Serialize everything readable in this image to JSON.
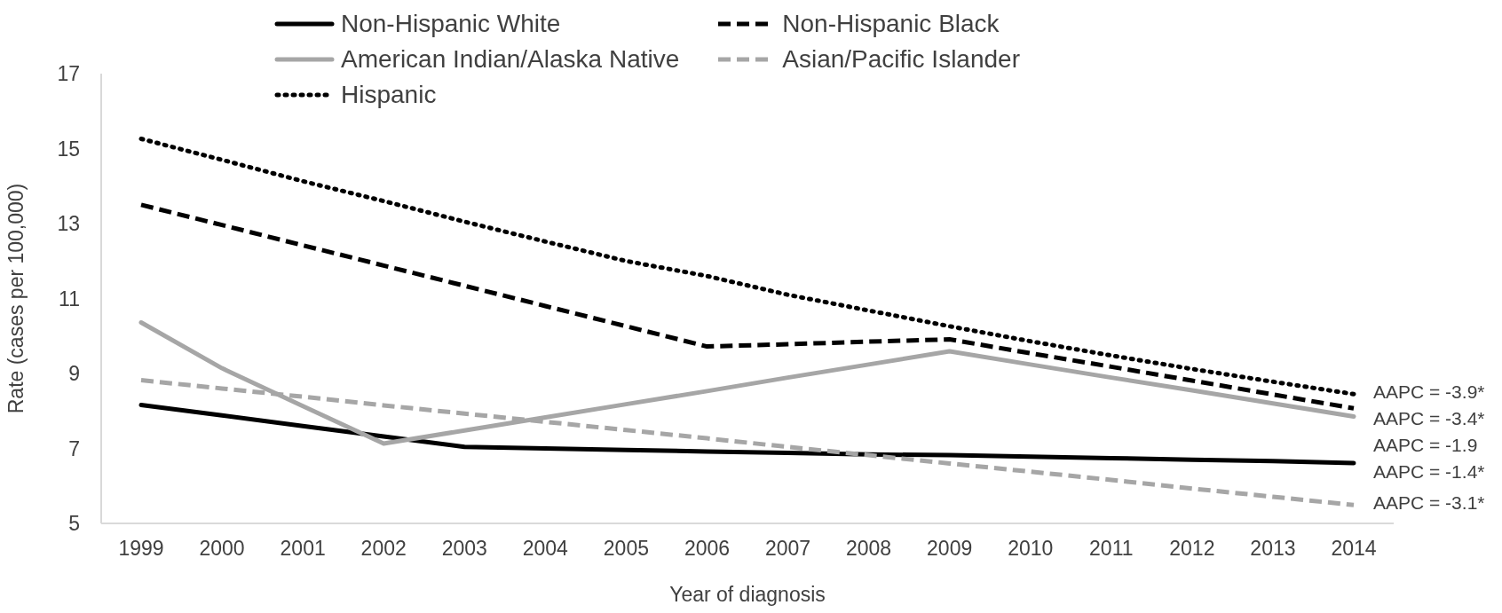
{
  "chart_data": {
    "type": "line",
    "xlabel": "Year of diagnosis",
    "ylabel": "Rate (cases per 100,000)",
    "categories": [
      "1999",
      "2000",
      "2001",
      "2002",
      "2003",
      "2004",
      "2005",
      "2006",
      "2007",
      "2008",
      "2009",
      "2010",
      "2011",
      "2012",
      "2013",
      "2014"
    ],
    "series": [
      {
        "name": "Non-Hispanic White",
        "color": "#000000",
        "line_style": "solid",
        "values": [
          8.16,
          7.88,
          7.6,
          7.32,
          7.04,
          7.0,
          6.96,
          6.92,
          6.88,
          6.84,
          6.82,
          6.78,
          6.74,
          6.7,
          6.66,
          6.61
        ]
      },
      {
        "name": "Non-Hispanic Black",
        "color": "#000000",
        "line_style": "dashed",
        "values": [
          13.5,
          12.96,
          12.42,
          11.88,
          11.34,
          10.8,
          10.26,
          9.72,
          9.78,
          9.85,
          9.91,
          9.54,
          9.18,
          8.81,
          8.44,
          8.07
        ]
      },
      {
        "name": "American Indian/Alaska Native",
        "color": "#a6a6a6",
        "line_style": "solid",
        "values": [
          10.36,
          9.14,
          8.13,
          7.13,
          7.48,
          7.83,
          8.18,
          8.53,
          8.89,
          9.24,
          9.59,
          9.24,
          8.89,
          8.55,
          8.2,
          7.85
        ]
      },
      {
        "name": "Asian/Pacific Islander",
        "color": "#a6a6a6",
        "line_style": "dashed",
        "values": [
          8.82,
          8.6,
          8.38,
          8.15,
          7.93,
          7.71,
          7.49,
          7.27,
          7.04,
          6.82,
          6.6,
          6.38,
          6.16,
          5.93,
          5.71,
          5.49
        ]
      },
      {
        "name": "Hispanic",
        "color": "#000000",
        "line_style": "dotted",
        "values": [
          15.26,
          14.7,
          14.13,
          13.6,
          13.05,
          12.52,
          12.0,
          11.6,
          11.1,
          10.68,
          10.26,
          9.86,
          9.48,
          9.12,
          8.78,
          8.45
        ]
      }
    ],
    "annotations": [
      {
        "text": "AAPC = -3.9*",
        "x": "2014",
        "y": 8.45
      },
      {
        "text": "AAPC = -3.4*",
        "x": "2014",
        "y": 8.07
      },
      {
        "text": "AAPC = -1.9",
        "x": "2014",
        "y": 7.85
      },
      {
        "text": "AAPC = -1.4*",
        "x": "2014",
        "y": 6.61
      },
      {
        "text": "AAPC = -3.1*",
        "x": "2014",
        "y": 5.49
      }
    ],
    "ylim": [
      5,
      17
    ],
    "yticks": [
      5,
      7,
      9,
      11,
      13,
      15,
      17
    ],
    "grid": false,
    "legend": "top"
  }
}
